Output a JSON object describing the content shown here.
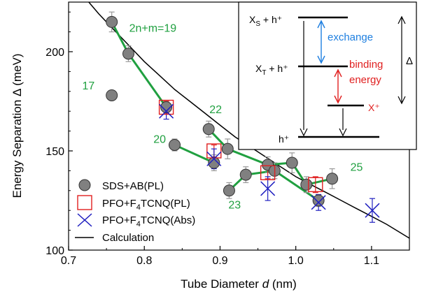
{
  "chart_data": {
    "type": "scatter",
    "xlabel": "Tube Diameter",
    "xlabel_var": "d",
    "xlabel_unit": " (nm)",
    "ylabel": "Energy Separation Δ (meV)",
    "xlim": [
      0.7,
      1.15
    ],
    "ylim": [
      100,
      225
    ],
    "x_ticks": [
      0.7,
      0.8,
      0.9,
      1.0,
      1.1
    ],
    "x_tick_labels": [
      "0.7",
      "0.8",
      "0.9",
      "1.0",
      "1.1"
    ],
    "y_ticks": [
      100,
      150,
      200
    ],
    "y_tick_labels": [
      "100",
      "150",
      "200"
    ],
    "grid": false,
    "legend_position": "bottom-left",
    "legend": [
      {
        "label": "SDS+AB(PL)",
        "marker": "circle",
        "color": "#808080"
      },
      {
        "label": "PFO+F",
        "sub": "4",
        "label_tail": "TCNQ(PL)",
        "marker": "square",
        "color": "#e02020"
      },
      {
        "label": "PFO+F",
        "sub": "4",
        "label_tail": "TCNQ(Abs)",
        "marker": "x",
        "color": "#2020c0"
      },
      {
        "label": "Calculation",
        "marker": "line",
        "color": "#000000"
      }
    ],
    "series": [
      {
        "name": "SDS+AB(PL)",
        "marker": "circle",
        "color": "#808080",
        "points": [
          {
            "x": 0.757,
            "y": 215,
            "err": 5
          },
          {
            "x": 0.779,
            "y": 199,
            "err": 4
          },
          {
            "x": 0.757,
            "y": 178,
            "err": 0
          },
          {
            "x": 0.829,
            "y": 172,
            "err": 3
          },
          {
            "x": 0.84,
            "y": 153,
            "err": 3
          },
          {
            "x": 0.885,
            "y": 161,
            "err": 4
          },
          {
            "x": 0.892,
            "y": 144,
            "err": 4
          },
          {
            "x": 0.91,
            "y": 151,
            "err": 5
          },
          {
            "x": 0.912,
            "y": 130,
            "err": 4
          },
          {
            "x": 0.934,
            "y": 138,
            "err": 4
          },
          {
            "x": 0.963,
            "y": 143,
            "err": 4
          },
          {
            "x": 0.972,
            "y": 140,
            "err": 4
          },
          {
            "x": 0.995,
            "y": 144,
            "err": 5
          },
          {
            "x": 1.014,
            "y": 133,
            "err": 4
          },
          {
            "x": 1.03,
            "y": 125,
            "err": 3
          },
          {
            "x": 1.048,
            "y": 136,
            "err": 5
          }
        ]
      },
      {
        "name": "PFO+F4TCNQ(PL)",
        "marker": "square",
        "color": "#e02020",
        "points": [
          {
            "x": 0.829,
            "y": 172,
            "err": 3
          },
          {
            "x": 0.892,
            "y": 150,
            "err": 3
          },
          {
            "x": 0.963,
            "y": 139,
            "err": 3
          },
          {
            "x": 1.026,
            "y": 133,
            "err": 4
          }
        ]
      },
      {
        "name": "PFO+F4TCNQ(Abs)",
        "marker": "x",
        "color": "#2020c0",
        "points": [
          {
            "x": 0.829,
            "y": 170,
            "err": 4
          },
          {
            "x": 0.892,
            "y": 146,
            "err": 5
          },
          {
            "x": 0.963,
            "y": 131,
            "err": 6
          },
          {
            "x": 1.03,
            "y": 124,
            "err": 4
          },
          {
            "x": 1.101,
            "y": 120,
            "err": 6
          }
        ]
      }
    ],
    "family_lines": [
      {
        "label": "2n+m=19",
        "points": [
          [
            0.757,
            215
          ],
          [
            0.779,
            199
          ],
          [
            0.829,
            172
          ]
        ]
      },
      {
        "label": "22",
        "points": [
          [
            0.885,
            161
          ],
          [
            0.91,
            151
          ],
          [
            0.963,
            143
          ],
          [
            0.995,
            144
          ],
          [
            1.014,
            133
          ],
          [
            1.048,
            136
          ]
        ]
      },
      {
        "label": "20",
        "points": [
          [
            0.84,
            153
          ],
          [
            0.892,
            144
          ]
        ]
      },
      {
        "label": "23",
        "points": [
          [
            0.912,
            130
          ],
          [
            0.934,
            138
          ],
          [
            0.972,
            140
          ],
          [
            1.03,
            125
          ]
        ]
      }
    ],
    "family_line_color": "#20a040",
    "curve": {
      "name": "Calculation",
      "x": [
        0.7,
        0.72,
        0.74,
        0.76,
        0.78,
        0.8,
        0.82,
        0.84,
        0.86,
        0.88,
        0.9,
        0.92,
        0.94,
        0.96,
        0.98,
        1.0,
        1.02,
        1.04,
        1.06,
        1.08,
        1.1,
        1.12,
        1.15
      ],
      "y": [
        238,
        228,
        219,
        211,
        203,
        195,
        188,
        181,
        175,
        169,
        163,
        157,
        152,
        147,
        142,
        137,
        133,
        129,
        125,
        121,
        117,
        113,
        106
      ]
    },
    "annotations": [
      {
        "text": "2n+m=19",
        "x": 0.78,
        "y": 210
      },
      {
        "text": "17",
        "x": 0.718,
        "y": 181
      },
      {
        "text": "22",
        "x": 0.886,
        "y": 169
      },
      {
        "text": "20",
        "x": 0.812,
        "y": 154
      },
      {
        "text": "25",
        "x": 1.072,
        "y": 140
      },
      {
        "text": "23",
        "x": 0.911,
        "y": 121
      }
    ]
  },
  "inset": {
    "levels": [
      {
        "label_main": "X",
        "label_sub": "S",
        "label_tail": " + h⁺"
      },
      {
        "label_main": "X",
        "label_sub": "T",
        "label_tail": " + h⁺"
      },
      {
        "label_main": "X⁺"
      },
      {
        "label_main": "h⁺"
      }
    ],
    "exchange_label": "exchange",
    "binding_label_1": "binding",
    "binding_label_2": "energy",
    "delta_label": "Δ",
    "exchange_color": "#1e7fe0",
    "binding_color": "#e02020"
  }
}
